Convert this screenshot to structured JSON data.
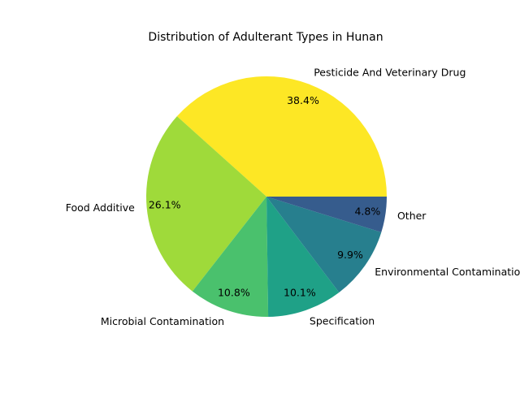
{
  "chart_data": {
    "type": "pie",
    "title": "Distribution of Adulterant Types in Hunan",
    "slices": [
      {
        "label": "Pesticide And Veterinary Drug",
        "value": 38.4,
        "pct_label": "38.4%",
        "color": "#fde725"
      },
      {
        "label": "Food Additive",
        "value": 26.1,
        "pct_label": "26.1%",
        "color": "#9fda3a"
      },
      {
        "label": "Microbial Contamination",
        "value": 10.8,
        "pct_label": "10.8%",
        "color": "#4ac16d"
      },
      {
        "label": "Specification",
        "value": 10.1,
        "pct_label": "10.1%",
        "color": "#1fa187"
      },
      {
        "label": "Environmental Contamination",
        "value": 9.9,
        "pct_label": "9.9%",
        "color": "#277f8e"
      },
      {
        "label": "Other",
        "value": 4.8,
        "pct_label": "4.8%",
        "color": "#365c8d"
      }
    ],
    "start_angle_deg": 0,
    "direction": "counterclockwise",
    "legend": "none"
  }
}
